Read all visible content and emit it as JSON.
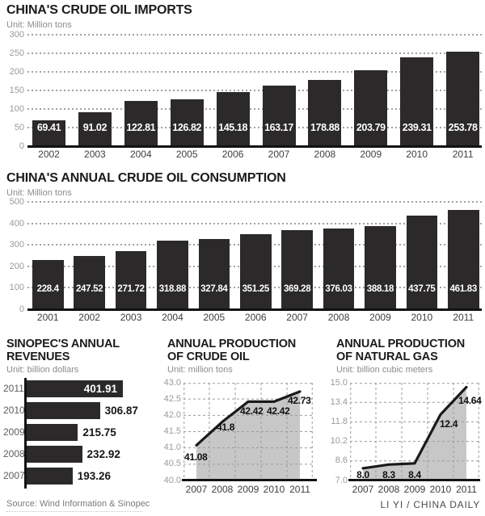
{
  "colors": {
    "bar": "#2b2929",
    "line": "#1a1a1a",
    "area_fill": "#c7c7c7",
    "grid": "#9b9b9b",
    "label_on_bar": "#ffffff"
  },
  "chart_data": [
    {
      "type": "bar",
      "title": "CHINA'S CRUDE OIL IMPORTS",
      "unit": "Unit: Million tons",
      "categories": [
        "2002",
        "2003",
        "2004",
        "2005",
        "2006",
        "2007",
        "2008",
        "2009",
        "2010",
        "2011"
      ],
      "values": [
        69.41,
        91.02,
        122.81,
        126.82,
        145.18,
        163.17,
        178.88,
        203.79,
        239.31,
        253.78
      ],
      "value_labels": [
        "69.41",
        "91.02",
        "122.81",
        "126.82",
        "145.18",
        "163.17",
        "178.88",
        "203.79",
        "239.31",
        "253.78"
      ],
      "yticks": [
        0,
        50,
        100,
        150,
        200,
        250,
        300
      ],
      "ytick_labels": [
        "0",
        "50",
        "100",
        "150",
        "200",
        "250",
        "300"
      ],
      "ylim": [
        0,
        300
      ],
      "grid": "dotted horizontal"
    },
    {
      "type": "bar",
      "title": "CHINA'S ANNUAL CRUDE OIL CONSUMPTION",
      "unit": "Unit: Million tons",
      "categories": [
        "2001",
        "2002",
        "2003",
        "2004",
        "2005",
        "2006",
        "2007",
        "2008",
        "2009",
        "2010",
        "2011"
      ],
      "values": [
        228.4,
        247.52,
        271.72,
        318.88,
        327.84,
        351.25,
        369.28,
        376.03,
        388.18,
        437.75,
        461.83
      ],
      "value_labels": [
        "228.4",
        "247.52",
        "271.72",
        "318.88",
        "327.84",
        "351.25",
        "369.28",
        "376.03",
        "388.18",
        "437.75",
        "461.83"
      ],
      "yticks": [
        0,
        100,
        200,
        300,
        400,
        500
      ],
      "ytick_labels": [
        "0",
        "100",
        "200",
        "300",
        "400",
        "500"
      ],
      "ylim": [
        0,
        500
      ],
      "grid": "dotted horizontal"
    },
    {
      "type": "bar",
      "orientation": "horizontal",
      "title": "SINOPEC'S ANNUAL REVENUES",
      "title_line1": "SINOPEC'S ANNUAL",
      "title_line2": "REVENUES",
      "unit": "Unit: billion dollars",
      "categories": [
        "2011",
        "2010",
        "2009",
        "2008",
        "2007"
      ],
      "values": [
        401.91,
        306.87,
        215.75,
        232.92,
        193.26
      ],
      "value_labels": [
        "401.91",
        "306.87",
        "215.75",
        "232.92",
        "193.26"
      ],
      "xlim": [
        0,
        420
      ],
      "grid": "none"
    },
    {
      "type": "area",
      "title": "ANNUAL PRODUCTION OF CRUDE OIL",
      "title_line1": "ANNUAL PRODUCTION",
      "title_line2": "OF CRUDE OIL",
      "unit": "Unit: million tons",
      "categories": [
        "2007",
        "2008",
        "2009",
        "2010",
        "2011"
      ],
      "values": [
        41.08,
        41.8,
        42.42,
        42.42,
        42.73
      ],
      "value_labels": [
        "41.08",
        "41.8",
        "42.42",
        "42.42",
        "42.73"
      ],
      "yticks": [
        40.0,
        40.5,
        41.0,
        41.5,
        42.0,
        42.5,
        43.0
      ],
      "ytick_labels": [
        "40.0",
        "40.5",
        "41.0",
        "41.5",
        "42.0",
        "42.5",
        "43.0"
      ],
      "ylim": [
        40.0,
        43.0
      ],
      "grid": "dashed both"
    },
    {
      "type": "area",
      "title": "ANNUAL PRODUCTION OF NATURAL GAS",
      "title_line1": "ANNUAL PRODUCTION",
      "title_line2": "OF NATURAL GAS",
      "unit": "Unit: billion cubic meters",
      "categories": [
        "2007",
        "2008",
        "2009",
        "2010",
        "2011"
      ],
      "values": [
        8.0,
        8.3,
        8.4,
        12.4,
        14.64
      ],
      "value_labels": [
        "8.0",
        "8.3",
        "8.4",
        "12.4",
        "14.64"
      ],
      "yticks": [
        7.0,
        8.6,
        10.2,
        11.8,
        13.4,
        15.0
      ],
      "ytick_labels": [
        "7.0",
        "8.6",
        "10.2",
        "11.8",
        "13.4",
        "15.0"
      ],
      "ylim": [
        7.0,
        15.0
      ],
      "grid": "dashed both"
    }
  ],
  "footer": {
    "source": "Source: Wind Information & Sinopec",
    "credit": "LI YI / CHINA DAILY"
  }
}
